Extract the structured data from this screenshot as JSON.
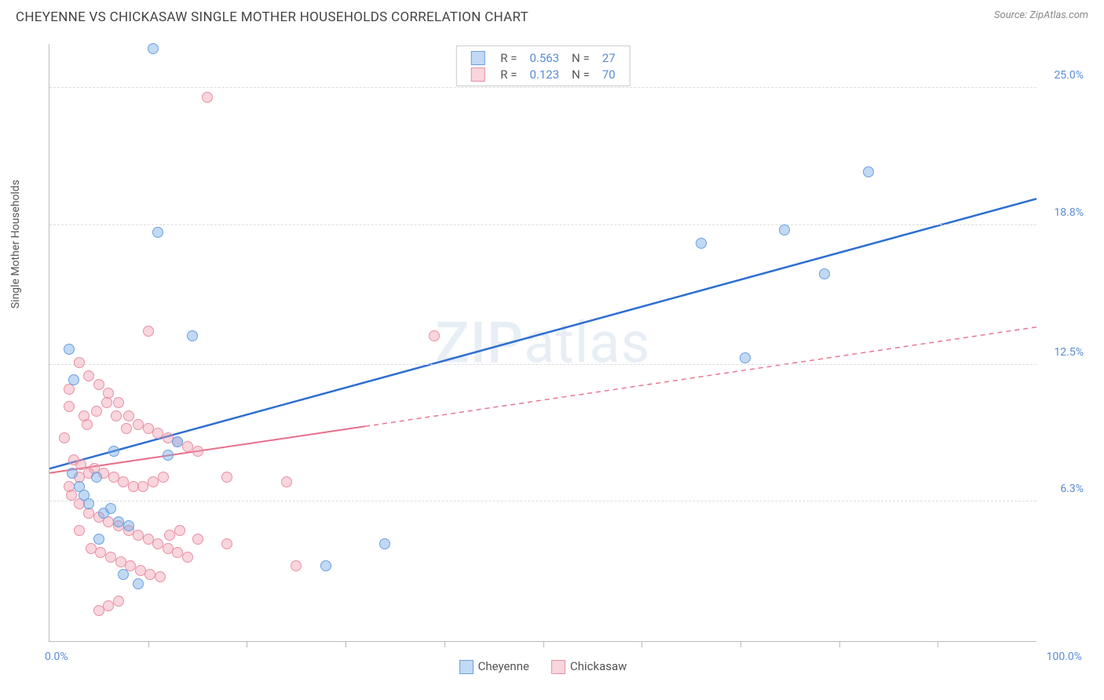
{
  "header": {
    "title": "CHEYENNE VS CHICKASAW SINGLE MOTHER HOUSEHOLDS CORRELATION CHART",
    "source": "Source: ZipAtlas.com"
  },
  "chart": {
    "type": "scatter",
    "ylabel": "Single Mother Households",
    "watermark": "ZIPatlas",
    "xlim": [
      0,
      100
    ],
    "ylim": [
      0,
      27
    ],
    "x_axis_labels": [
      {
        "value": 0.0,
        "text": "0.0%"
      },
      {
        "value": 100.0,
        "text": "100.0%"
      }
    ],
    "x_ticks": [
      10,
      20,
      30,
      40,
      50,
      60,
      70,
      80,
      90
    ],
    "y_gridlines": [
      {
        "value": 6.3,
        "text": "6.3%"
      },
      {
        "value": 12.5,
        "text": "12.5%"
      },
      {
        "value": 18.8,
        "text": "18.8%"
      },
      {
        "value": 25.0,
        "text": "25.0%"
      }
    ],
    "series": [
      {
        "name": "Cheyenne",
        "color_fill": "rgba(120,170,230,0.45)",
        "color_stroke": "#6aa0e0",
        "line_color": "#2e6fd0",
        "line_width": 2.5,
        "marker_radius": 7,
        "R": "0.563",
        "N": "27",
        "trend": {
          "x1": 0,
          "y1": 7.8,
          "x2": 100,
          "y2": 20.0,
          "solid_until_x": 100
        },
        "points": [
          [
            10.5,
            26.8
          ],
          [
            11.0,
            18.5
          ],
          [
            2.0,
            13.2
          ],
          [
            2.5,
            11.8
          ],
          [
            3.0,
            7.0
          ],
          [
            4.0,
            6.2
          ],
          [
            5.5,
            5.8
          ],
          [
            7.0,
            5.4
          ],
          [
            8.0,
            5.2
          ],
          [
            9.0,
            2.6
          ],
          [
            5.0,
            4.6
          ],
          [
            6.5,
            8.6
          ],
          [
            12.0,
            8.4
          ],
          [
            13.0,
            9.0
          ],
          [
            14.5,
            13.8
          ],
          [
            28.0,
            3.4
          ],
          [
            34.0,
            4.4
          ],
          [
            66.0,
            18.0
          ],
          [
            70.5,
            12.8
          ],
          [
            74.5,
            18.6
          ],
          [
            78.5,
            16.6
          ],
          [
            83.0,
            21.2
          ],
          [
            2.3,
            7.6
          ],
          [
            3.5,
            6.6
          ],
          [
            4.8,
            7.4
          ],
          [
            6.2,
            6.0
          ],
          [
            7.5,
            3.0
          ]
        ]
      },
      {
        "name": "Chickasaw",
        "color_fill": "rgba(240,150,170,0.40)",
        "color_stroke": "#e890a5",
        "line_color": "#e86f8a",
        "line_width": 2,
        "marker_radius": 7,
        "R": "0.123",
        "N": "70",
        "trend": {
          "x1": 0,
          "y1": 7.6,
          "x2": 100,
          "y2": 14.2,
          "solid_until_x": 32
        },
        "points": [
          [
            16.0,
            24.6
          ],
          [
            10.0,
            14.0
          ],
          [
            3.0,
            12.6
          ],
          [
            4.0,
            12.0
          ],
          [
            5.0,
            11.6
          ],
          [
            6.0,
            11.2
          ],
          [
            2.0,
            10.6
          ],
          [
            3.5,
            10.2
          ],
          [
            7.0,
            10.8
          ],
          [
            8.0,
            10.2
          ],
          [
            9.0,
            9.8
          ],
          [
            10.0,
            9.6
          ],
          [
            11.0,
            9.4
          ],
          [
            12.0,
            9.2
          ],
          [
            13.0,
            9.0
          ],
          [
            14.0,
            8.8
          ],
          [
            15.0,
            8.6
          ],
          [
            2.5,
            8.2
          ],
          [
            3.2,
            8.0
          ],
          [
            4.5,
            7.8
          ],
          [
            5.5,
            7.6
          ],
          [
            6.5,
            7.4
          ],
          [
            7.5,
            7.2
          ],
          [
            8.5,
            7.0
          ],
          [
            9.5,
            7.0
          ],
          [
            10.5,
            7.2
          ],
          [
            11.5,
            7.4
          ],
          [
            18.0,
            7.4
          ],
          [
            24.0,
            7.2
          ],
          [
            39.0,
            13.8
          ],
          [
            1.5,
            9.2
          ],
          [
            2.2,
            6.6
          ],
          [
            3.0,
            6.2
          ],
          [
            4.0,
            5.8
          ],
          [
            5.0,
            5.6
          ],
          [
            6.0,
            5.4
          ],
          [
            7.0,
            5.2
          ],
          [
            8.0,
            5.0
          ],
          [
            9.0,
            4.8
          ],
          [
            10.0,
            4.6
          ],
          [
            11.0,
            4.4
          ],
          [
            12.0,
            4.2
          ],
          [
            13.0,
            4.0
          ],
          [
            14.0,
            3.8
          ],
          [
            15.0,
            4.6
          ],
          [
            18.0,
            4.4
          ],
          [
            4.2,
            4.2
          ],
          [
            5.2,
            4.0
          ],
          [
            6.2,
            3.8
          ],
          [
            7.2,
            3.6
          ],
          [
            8.2,
            3.4
          ],
          [
            9.2,
            3.2
          ],
          [
            10.2,
            3.0
          ],
          [
            11.2,
            2.9
          ],
          [
            12.2,
            4.8
          ],
          [
            13.2,
            5.0
          ],
          [
            25.0,
            3.4
          ],
          [
            3.0,
            5.0
          ],
          [
            3.8,
            9.8
          ],
          [
            4.8,
            10.4
          ],
          [
            5.8,
            10.8
          ],
          [
            6.8,
            10.2
          ],
          [
            7.8,
            9.6
          ],
          [
            2.0,
            11.4
          ],
          [
            5.0,
            1.4
          ],
          [
            6.0,
            1.6
          ],
          [
            7.0,
            1.8
          ],
          [
            2.0,
            7.0
          ],
          [
            3.0,
            7.4
          ],
          [
            4.0,
            7.6
          ]
        ]
      }
    ],
    "legend_top": {
      "rows": [
        {
          "swatch_fill": "rgba(120,170,230,0.45)",
          "swatch_stroke": "#6aa0e0",
          "r_label": "R =",
          "r_value": "0.563",
          "n_label": "N =",
          "n_value": "27"
        },
        {
          "swatch_fill": "rgba(240,150,170,0.40)",
          "swatch_stroke": "#e890a5",
          "r_label": "R =",
          "r_value": "0.123",
          "n_label": "N =",
          "n_value": "70"
        }
      ]
    },
    "legend_bottom": [
      {
        "swatch_fill": "rgba(120,170,230,0.45)",
        "swatch_stroke": "#6aa0e0",
        "label": "Cheyenne"
      },
      {
        "swatch_fill": "rgba(240,150,170,0.40)",
        "swatch_stroke": "#e890a5",
        "label": "Chickasaw"
      }
    ]
  }
}
